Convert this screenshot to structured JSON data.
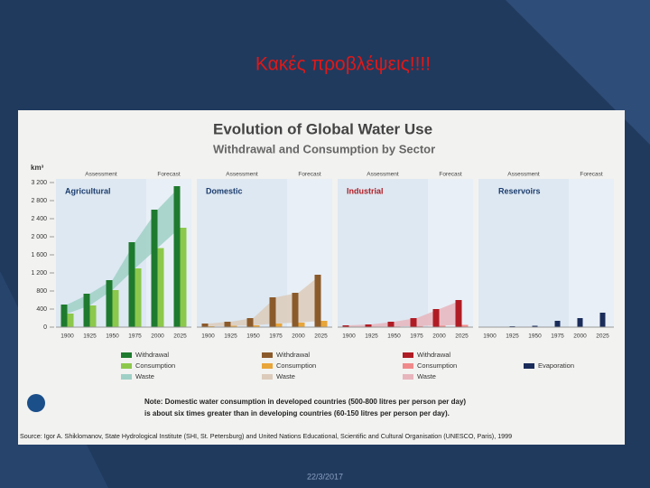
{
  "slide": {
    "title": "Κακές προβλέψεις!!!!",
    "date": "22/3/2017"
  },
  "chart_data": {
    "type": "bar",
    "title": "Evolution of Global Water Use",
    "subtitle": "Withdrawal and Consumption by Sector",
    "y_label": "km³",
    "ylim": [
      0,
      3200
    ],
    "yticks": [
      0,
      400,
      800,
      {
        "value": 1200,
        "label": "1 200"
      },
      {
        "value": 1600,
        "label": "1 600"
      },
      {
        "value": 2000,
        "label": "2 000"
      },
      {
        "value": 2400,
        "label": "2 400"
      },
      {
        "value": 2800,
        "label": "2 800"
      },
      {
        "value": 3200,
        "label": "3 200"
      }
    ],
    "categories": [
      "1900",
      "1925",
      "1950",
      "1975",
      "2000",
      "2025"
    ],
    "period_labels": [
      "Assessment",
      "Forecast"
    ],
    "panels": [
      {
        "name": "Agricultural",
        "series": [
          {
            "name": "Withdrawal",
            "type": "bar",
            "color": "#1e7a2e",
            "values": [
              500,
              740,
              1040,
              1880,
              2600,
              3120
            ]
          },
          {
            "name": "Consumption",
            "type": "bar",
            "color": "#8cc84b",
            "values": [
              300,
              480,
              820,
              1300,
              1750,
              2200
            ]
          },
          {
            "name": "Waste",
            "type": "area",
            "color": "#9fd0c6",
            "values": [
              200,
              260,
              220,
              580,
              850,
              920
            ]
          }
        ]
      },
      {
        "name": "Domestic",
        "series": [
          {
            "name": "Withdrawal",
            "type": "bar",
            "color": "#8b5a2b",
            "values": [
              80,
              120,
              200,
              660,
              760,
              1160
            ]
          },
          {
            "name": "Consumption",
            "type": "bar",
            "color": "#e8a53a",
            "values": [
              20,
              30,
              40,
              80,
              100,
              140
            ]
          },
          {
            "name": "Waste",
            "type": "area",
            "color": "#dccbbb",
            "values": [
              60,
              90,
              160,
              580,
              660,
              1020
            ]
          }
        ]
      },
      {
        "name": "Industrial",
        "series": [
          {
            "name": "Withdrawal",
            "type": "bar",
            "color": "#b01c24",
            "values": [
              40,
              60,
              120,
              200,
              400,
              600
            ]
          },
          {
            "name": "Consumption",
            "type": "bar",
            "color": "#f08a8a",
            "values": [
              5,
              10,
              15,
              25,
              35,
              50
            ]
          },
          {
            "name": "Waste",
            "type": "area",
            "color": "#e8b5bd",
            "values": [
              35,
              50,
              105,
              175,
              365,
              550
            ]
          }
        ]
      },
      {
        "name": "Reservoirs",
        "series": [
          {
            "name": "Evaporation",
            "type": "bar",
            "color": "#1a2c5a",
            "values": [
              10,
              20,
              30,
              140,
              200,
              320
            ]
          }
        ]
      }
    ],
    "note": [
      "Note: Domestic water consumption in developed countries (500-800 litres per person per day)",
      "is about six times greater than in developing countries (60-150 litres per person per day)."
    ],
    "source": "Source: Igor A. Shiklomanov, State Hydrological Institute (SHI, St. Petersburg) and United Nations Educational, Scientific and Cultural Organisation (UNESCO, Paris), 1999"
  }
}
